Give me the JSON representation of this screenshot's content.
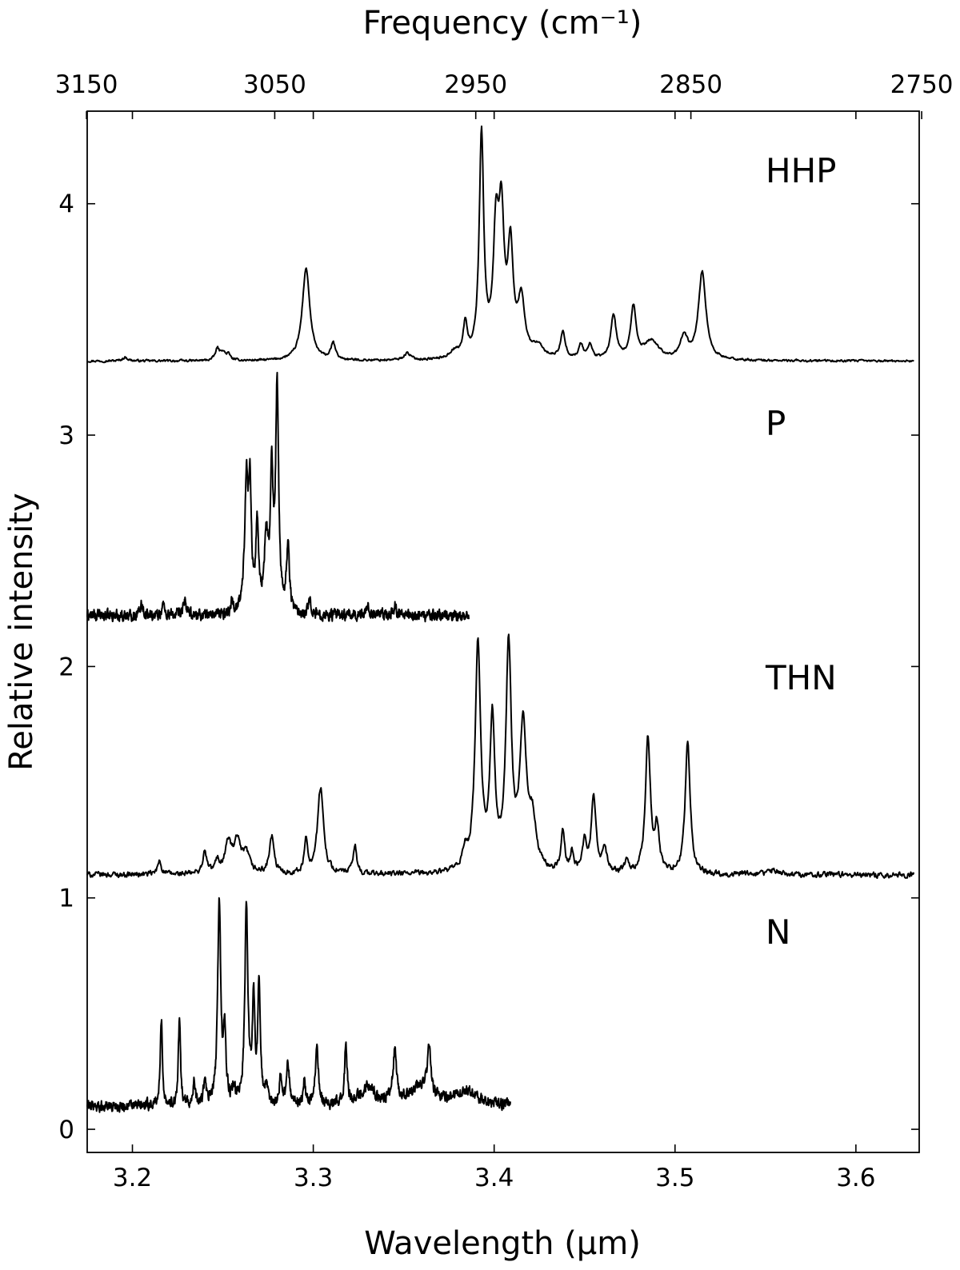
{
  "chart_data": {
    "type": "line",
    "xlabel": "Wavelength (μm)",
    "x2label": "Frequency (cm⁻¹)",
    "ylabel": "Relative intensity",
    "xlim": [
      3.175,
      3.635
    ],
    "ylim": [
      -0.1,
      4.4
    ],
    "xticks": [
      3.2,
      3.3,
      3.4,
      3.5,
      3.6
    ],
    "xtick_labels": [
      "3.2",
      "3.3",
      "3.4",
      "3.5",
      "3.6"
    ],
    "x2ticks": [
      3150,
      3050,
      2950,
      2850,
      2750
    ],
    "x2tick_labels": [
      "3150",
      "3050",
      "2950",
      "2850",
      "2750"
    ],
    "yticks": [
      0,
      1,
      2,
      3,
      4
    ],
    "ytick_labels": [
      "0",
      "1",
      "2",
      "3",
      "4"
    ],
    "grid": false,
    "series": [
      {
        "name": "HHP",
        "x_range": [
          3.175,
          3.632
        ],
        "baseline": 3.32,
        "noise": 0.004,
        "peaks": [
          [
            3.196,
            0.015,
            0.0018
          ],
          [
            3.247,
            0.05,
            0.0014
          ],
          [
            3.25,
            0.035,
            0.0014
          ],
          [
            3.253,
            0.025,
            0.0014
          ],
          [
            3.296,
            0.4,
            0.0025
          ],
          [
            3.311,
            0.07,
            0.0015
          ],
          [
            3.352,
            0.03,
            0.0022
          ],
          [
            3.378,
            0.03,
            0.003
          ],
          [
            3.384,
            0.14,
            0.0014
          ],
          [
            3.393,
            0.96,
            0.0015
          ],
          [
            3.401,
            0.5,
            0.0018
          ],
          [
            3.404,
            0.56,
            0.0018
          ],
          [
            3.409,
            0.45,
            0.0018
          ],
          [
            3.415,
            0.24,
            0.0022
          ],
          [
            3.424,
            0.05,
            0.004
          ],
          [
            3.438,
            0.12,
            0.0015
          ],
          [
            3.448,
            0.06,
            0.0015
          ],
          [
            3.453,
            0.06,
            0.0015
          ],
          [
            3.466,
            0.19,
            0.0018
          ],
          [
            3.477,
            0.22,
            0.0018
          ],
          [
            3.487,
            0.08,
            0.005
          ],
          [
            3.505,
            0.1,
            0.0022
          ],
          [
            3.515,
            0.38,
            0.0025
          ]
        ]
      },
      {
        "name": "P",
        "x_range": [
          3.175,
          3.386
        ],
        "baseline": 2.22,
        "noise": 0.02,
        "peaks": [
          [
            3.205,
            0.06,
            0.0008
          ],
          [
            3.217,
            0.05,
            0.0008
          ],
          [
            3.229,
            0.07,
            0.0008
          ],
          [
            3.255,
            0.05,
            0.0008
          ],
          [
            3.263,
            0.56,
            0.0011
          ],
          [
            3.265,
            0.5,
            0.0009
          ],
          [
            3.269,
            0.37,
            0.0009
          ],
          [
            3.274,
            0.3,
            0.0013
          ],
          [
            3.277,
            0.55,
            0.0009
          ],
          [
            3.28,
            0.97,
            0.001
          ],
          [
            3.286,
            0.28,
            0.001
          ],
          [
            3.298,
            0.07,
            0.0008
          ],
          [
            3.33,
            0.05,
            0.001
          ],
          [
            3.345,
            0.04,
            0.001
          ]
        ]
      },
      {
        "name": "THN",
        "x_range": [
          3.175,
          3.632
        ],
        "baseline": 1.1,
        "noise": 0.01,
        "peaks": [
          [
            3.215,
            0.06,
            0.0012
          ],
          [
            3.24,
            0.09,
            0.0014
          ],
          [
            3.247,
            0.05,
            0.0014
          ],
          [
            3.253,
            0.13,
            0.0022
          ],
          [
            3.258,
            0.13,
            0.0022
          ],
          [
            3.263,
            0.08,
            0.0022
          ],
          [
            3.277,
            0.16,
            0.0015
          ],
          [
            3.296,
            0.15,
            0.001
          ],
          [
            3.304,
            0.37,
            0.002
          ],
          [
            3.323,
            0.12,
            0.0012
          ],
          [
            3.384,
            0.08,
            0.0015
          ],
          [
            3.391,
            0.98,
            0.0018
          ],
          [
            3.399,
            0.64,
            0.0016
          ],
          [
            3.408,
            0.96,
            0.0018
          ],
          [
            3.416,
            0.6,
            0.0022
          ],
          [
            3.421,
            0.2,
            0.0025
          ],
          [
            3.438,
            0.17,
            0.0012
          ],
          [
            3.443,
            0.08,
            0.0012
          ],
          [
            3.45,
            0.14,
            0.0012
          ],
          [
            3.455,
            0.33,
            0.0015
          ],
          [
            3.461,
            0.1,
            0.0015
          ],
          [
            3.473,
            0.05,
            0.0012
          ],
          [
            3.485,
            0.58,
            0.0016
          ],
          [
            3.49,
            0.18,
            0.0015
          ],
          [
            3.507,
            0.58,
            0.0016
          ],
          [
            3.555,
            0.02,
            0.003
          ]
        ]
      },
      {
        "name": "N",
        "x_range": [
          3.175,
          3.409
        ],
        "baseline": 0.1,
        "noise": 0.02,
        "peaks": [
          [
            3.216,
            0.37,
            0.0007
          ],
          [
            3.226,
            0.37,
            0.0007
          ],
          [
            3.234,
            0.1,
            0.0007
          ],
          [
            3.24,
            0.1,
            0.0008
          ],
          [
            3.248,
            0.88,
            0.001
          ],
          [
            3.251,
            0.3,
            0.0008
          ],
          [
            3.256,
            0.06,
            0.0008
          ],
          [
            3.263,
            0.86,
            0.001
          ],
          [
            3.267,
            0.44,
            0.0008
          ],
          [
            3.27,
            0.53,
            0.0008
          ],
          [
            3.274,
            0.07,
            0.0008
          ],
          [
            3.282,
            0.12,
            0.0008
          ],
          [
            3.286,
            0.18,
            0.001
          ],
          [
            3.295,
            0.1,
            0.0008
          ],
          [
            3.302,
            0.26,
            0.001
          ],
          [
            3.318,
            0.25,
            0.0008
          ],
          [
            3.345,
            0.21,
            0.0012
          ],
          [
            3.364,
            0.2,
            0.001
          ],
          [
            3.33,
            0.08,
            0.005
          ],
          [
            3.36,
            0.08,
            0.007
          ],
          [
            3.385,
            0.06,
            0.008
          ]
        ]
      }
    ],
    "series_labels": [
      "HHP",
      "P",
      "THN",
      "N"
    ]
  }
}
